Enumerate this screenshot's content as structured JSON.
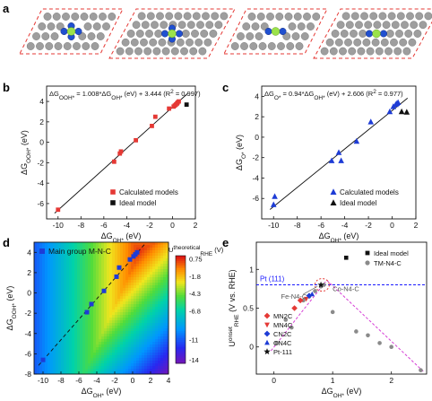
{
  "panel_labels": {
    "a": "a",
    "b": "b",
    "c": "c",
    "d": "d",
    "e": "e"
  },
  "colors": {
    "red": "#e53935",
    "black": "#111111",
    "blue": "#1e3cd6",
    "gray": "#8a8a8a",
    "pt_line": "#1a1aff",
    "volcano": "#d63fd6",
    "atom_c": "#9e9e9e",
    "atom_n": "#2050d0",
    "atom_m": "#9be24a"
  },
  "chart_data": [
    {
      "id": "b",
      "type": "scatter",
      "equation": "ΔG_OOH* = 1.008*ΔG_OH* (eV) + 3.444 (R² = 0.997)",
      "eq_parts": {
        "lhs_base": "ΔG",
        "lhs_sub": "OOH*",
        "mid1": " = 1.008*ΔG",
        "mid_sub": "OH*",
        "tail": " (eV) + 3.444 (",
        "r_base": "R",
        "r_sup": "2",
        "end": " = 0.997)"
      },
      "xlabel": {
        "base": "ΔG",
        "sub": "OH*",
        "unit": " (eV)"
      },
      "ylabel": {
        "base": "ΔG",
        "sub": "OOH*",
        "unit": " (eV)"
      },
      "xlim": [
        -11,
        2
      ],
      "ylim": [
        -7.5,
        5.5
      ],
      "xticks": [
        -10,
        -8,
        -6,
        -4,
        -2,
        0,
        2
      ],
      "yticks": [
        -6,
        -4,
        -2,
        0,
        2,
        4
      ],
      "fit": {
        "slope": 1.008,
        "intercept": 3.444
      },
      "legend": [
        "Calculated models",
        "Ideal model"
      ],
      "series": [
        {
          "name": "Calculated models",
          "marker": "square",
          "color": "#e53935",
          "x": [
            -10,
            -5.1,
            -4.6,
            -4.5,
            -3.2,
            -1.8,
            -1.5,
            -0.3,
            0.1,
            0.2,
            0.3,
            0.4,
            0.45,
            0.55
          ],
          "y": [
            -6.6,
            -1.9,
            -1.1,
            -0.9,
            0.2,
            1.6,
            2.5,
            3.3,
            3.5,
            3.6,
            3.7,
            3.8,
            3.9,
            4.0
          ]
        },
        {
          "name": "Ideal model",
          "marker": "square",
          "color": "#111111",
          "x": [
            1.23
          ],
          "y": [
            3.69
          ]
        }
      ]
    },
    {
      "id": "c",
      "type": "scatter",
      "equation": "ΔG_O* = 0.94*ΔG_OH* (eV) + 2.606 (R² = 0.977)",
      "eq_parts": {
        "lhs_base": "ΔG",
        "lhs_sub": "O*",
        "mid1": " = 0.94*ΔG",
        "mid_sub": "OH*",
        "tail": " (eV) + 2.606 (",
        "r_base": "R",
        "r_sup": "2",
        "end": " = 0.977)"
      },
      "xlabel": {
        "base": "ΔG",
        "sub": "OH*",
        "unit": " (eV)"
      },
      "ylabel": {
        "base": "ΔG",
        "sub": "O*",
        "unit": " (eV)"
      },
      "xlim": [
        -11,
        2
      ],
      "ylim": [
        -8,
        5
      ],
      "xticks": [
        -10,
        -8,
        -6,
        -4,
        -2,
        0,
        2
      ],
      "yticks": [
        -6,
        -4,
        -2,
        0,
        2,
        4
      ],
      "fit": {
        "slope": 0.94,
        "intercept": 2.606
      },
      "legend": [
        "Calculated models",
        "Ideal model"
      ],
      "series": [
        {
          "name": "Calculated models",
          "marker": "triangle",
          "color": "#1e3cd6",
          "x": [
            -10,
            -9.9,
            -5.1,
            -4.5,
            -4.3,
            -3.0,
            -1.8,
            -0.2,
            0.1,
            0.3,
            0.4,
            0.5
          ],
          "y": [
            -6.6,
            -5.8,
            -2.3,
            -1.5,
            -2.3,
            -0.4,
            1.5,
            2.5,
            3.0,
            3.2,
            3.3,
            3.4
          ]
        },
        {
          "name": "Ideal model",
          "marker": "triangle",
          "color": "#111111",
          "x": [
            0.8,
            1.23
          ],
          "y": [
            2.5,
            2.46
          ]
        }
      ]
    },
    {
      "id": "d",
      "type": "heatmap",
      "legend": [
        "Main group M-N-C"
      ],
      "colorbar": {
        "title_base": "U",
        "title_sup": "theoretical",
        "title_sub": "RHE",
        "unit": " (V)",
        "ticks": [
          "0.75",
          "-1.8",
          "-4.3",
          "-6.8",
          "-11",
          "-14"
        ],
        "tick_values": [
          0.75,
          -1.8,
          -4.3,
          -6.8,
          -11,
          -14
        ],
        "range": [
          -14.5,
          1.23
        ]
      },
      "xlabel": {
        "base": "ΔG",
        "sub": "OH*",
        "unit": " (eV)"
      },
      "ylabel": {
        "base": "ΔG",
        "sub": "OOH*",
        "unit": " (eV)"
      },
      "xlim": [
        -11,
        4
      ],
      "ylim": [
        -8,
        5
      ],
      "xticks": [
        -10,
        -8,
        -6,
        -4,
        -2,
        0,
        2,
        4
      ],
      "yticks": [
        -8,
        -6,
        -4,
        -2,
        0,
        2,
        4
      ],
      "series": [
        {
          "name": "Main group M-N-C",
          "marker": "square",
          "color": "#1e3cd6",
          "x": [
            -10,
            -5.1,
            -4.6,
            -3.2,
            -1.8,
            -1.5,
            -0.3,
            0.1,
            0.3,
            0.5
          ],
          "y": [
            -6.6,
            -1.9,
            -1.1,
            0.2,
            1.6,
            2.5,
            3.3,
            3.6,
            3.8,
            4.0
          ]
        }
      ]
    },
    {
      "id": "e",
      "type": "scatter",
      "xlabel": {
        "base": "ΔG",
        "sub": "OH*",
        "unit": " (eV)"
      },
      "ylabel": {
        "base": "U",
        "sup": "onset",
        "sub": "RHE",
        "unit": " (V vs. RHE)"
      },
      "xlim": [
        -0.3,
        2.6
      ],
      "ylim": [
        -0.35,
        1.35
      ],
      "xticks": [
        0,
        1,
        2
      ],
      "yticks": [
        0,
        0.5,
        1
      ],
      "pt_level": 0.8,
      "pt_label": "Pt (111)",
      "annotations": [
        "Fe-N4-C",
        "Co-N4-C"
      ],
      "legend_top": [
        "Ideal model",
        "TM-N4-C"
      ],
      "legend_bottom": [
        "MN2C",
        "MN4C",
        "CN2C",
        "CN4C",
        "Pt-111"
      ],
      "series": [
        {
          "name": "Ideal model",
          "marker": "square",
          "color": "#111111",
          "x": [
            1.23
          ],
          "y": [
            1.15
          ]
        },
        {
          "name": "TM-N4-C",
          "marker": "circle",
          "color": "#8a8a8a",
          "x": [
            0.05,
            0.2,
            0.3,
            0.35,
            0.5,
            0.6,
            0.7,
            0.8,
            0.85,
            1.0,
            1.4,
            1.6,
            1.8,
            2.0,
            2.5
          ],
          "y": [
            0.05,
            0.35,
            0.25,
            0.5,
            0.6,
            0.65,
            0.72,
            0.78,
            0.8,
            0.45,
            0.2,
            0.15,
            0.05,
            0.0,
            -0.3
          ]
        },
        {
          "name": "MN2C",
          "marker": "diamond",
          "color": "#e53935",
          "x": [
            0.35,
            0.45
          ],
          "y": [
            0.5,
            0.6
          ]
        },
        {
          "name": "MN4C",
          "marker": "triangle-down",
          "color": "#e53935",
          "x": [
            0.55
          ],
          "y": [
            0.62
          ]
        },
        {
          "name": "CN2C",
          "marker": "diamond",
          "color": "#1e3cd6",
          "x": [
            0.6
          ],
          "y": [
            0.66
          ]
        },
        {
          "name": "CN4C",
          "marker": "triangle",
          "color": "#1e3cd6",
          "x": [
            0.65
          ],
          "y": [
            0.68
          ]
        },
        {
          "name": "Pt-111",
          "marker": "star",
          "color": "#111111",
          "x": [
            0.8
          ],
          "y": [
            0.8
          ]
        }
      ]
    }
  ]
}
